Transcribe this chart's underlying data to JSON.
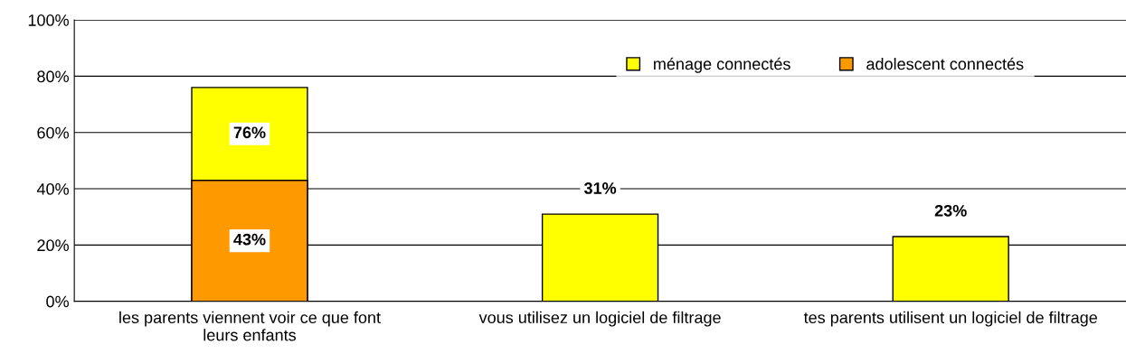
{
  "chart_data": {
    "type": "bar",
    "categories": [
      "les parents viennent voir ce que font\nleurs enfants",
      "vous utilisez un logiciel de filtrage",
      "tes parents utilisent un logiciel de filtrage"
    ],
    "series": [
      {
        "name": "ménage connectés",
        "color": "#ffff00",
        "values": [
          76,
          31,
          23
        ],
        "value_labels": [
          "76%",
          "31%",
          "23%"
        ]
      },
      {
        "name": "adolescent connectés",
        "color": "#ff9900",
        "values": [
          43,
          null,
          null
        ],
        "value_labels": [
          "43%",
          null,
          null
        ]
      }
    ],
    "ylim": [
      0,
      100
    ],
    "yticks": [
      {
        "value": 0,
        "label": "0%"
      },
      {
        "value": 20,
        "label": "20%"
      },
      {
        "value": 40,
        "label": "40%"
      },
      {
        "value": 60,
        "label": "60%"
      },
      {
        "value": 80,
        "label": "80%"
      },
      {
        "value": 100,
        "label": "100%"
      }
    ],
    "grid": "y",
    "legend": "top right"
  }
}
